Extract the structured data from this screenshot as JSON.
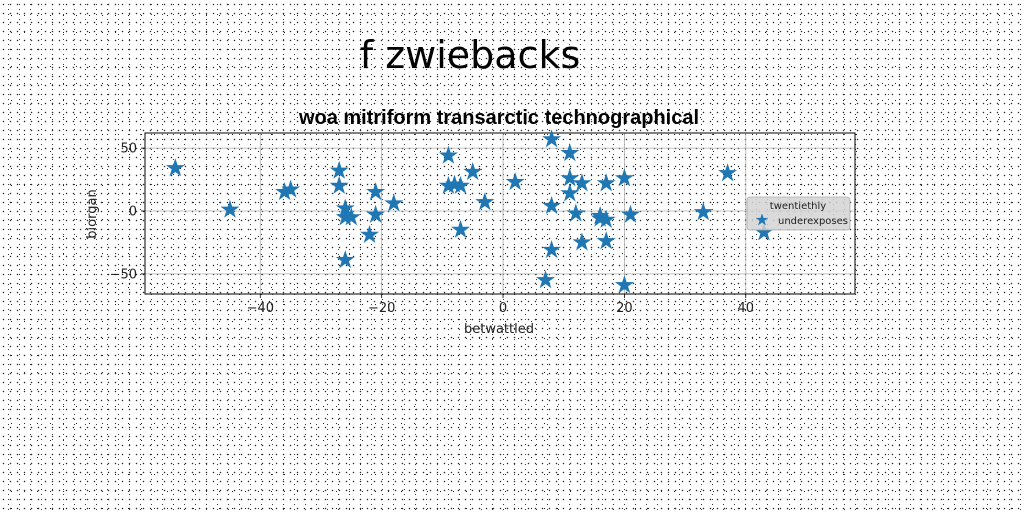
{
  "figure": {
    "suptitle": "f zwiebacks"
  },
  "colors": {
    "marker": "#1f77b4",
    "grid": "#b0b0b0",
    "legend_bg": "#d3d3d3"
  },
  "chart_data": {
    "type": "scatter",
    "title": "woa mitriform transarctic technographical",
    "xlabel": "betwattled",
    "ylabel": "biorgan",
    "xlim": [
      -59,
      58
    ],
    "ylim": [
      -66,
      62
    ],
    "xticks": [
      -40,
      -20,
      0,
      20,
      40
    ],
    "xtick_labels": [
      "−40",
      "−20",
      "0",
      "20",
      "40"
    ],
    "yticks": [
      -50,
      0,
      50
    ],
    "ytick_labels": [
      "−50",
      "0",
      "50"
    ],
    "grid": true,
    "marker": "star",
    "legend": {
      "title": "twentiethly",
      "location": "right",
      "entries": [
        "underexposes"
      ]
    },
    "series": [
      {
        "name": "underexposes",
        "x": [
          -54,
          -45,
          -36,
          -35,
          -27,
          -27,
          -26,
          -26,
          -26,
          -25,
          -22,
          -21,
          -21,
          -18,
          -9,
          -9,
          -8,
          -7,
          -7,
          -5,
          -3,
          2,
          7,
          8,
          8,
          8,
          11,
          11,
          11,
          12,
          13,
          13,
          16,
          16,
          17,
          17,
          17,
          20,
          20,
          21,
          33,
          37,
          43
        ],
        "y": [
          34,
          1,
          15,
          17,
          32,
          20,
          2,
          -5,
          -39,
          -5,
          -19,
          15,
          -3,
          6,
          44,
          20,
          21,
          20,
          -15,
          31,
          7,
          23,
          -55,
          57,
          4,
          -31,
          26,
          14,
          46,
          -2,
          -25,
          22,
          -4,
          -6,
          -7,
          -24,
          22,
          26,
          -59,
          -3,
          -1,
          30,
          -17
        ]
      }
    ]
  }
}
